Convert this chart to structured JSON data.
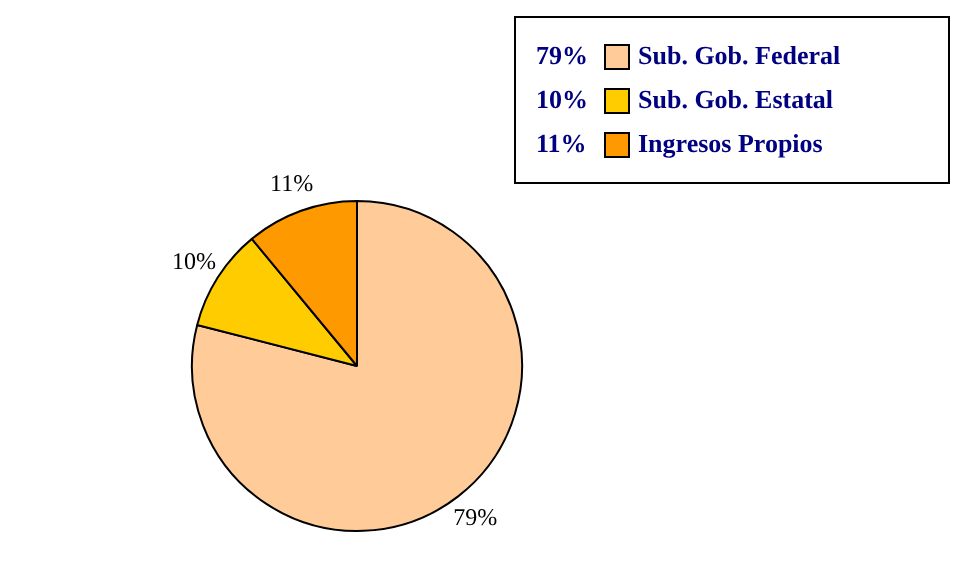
{
  "chart_data": {
    "type": "pie",
    "categories": [
      "Sub. Gob. Federal",
      "Sub. Gob. Estatal",
      "Ingresos Propios"
    ],
    "values": [
      79,
      10,
      11
    ],
    "colors": [
      "#ffcc99",
      "#ffcc00",
      "#ff9900"
    ],
    "value_labels": [
      "79%",
      "10%",
      "11%"
    ],
    "legend": "top right"
  }
}
